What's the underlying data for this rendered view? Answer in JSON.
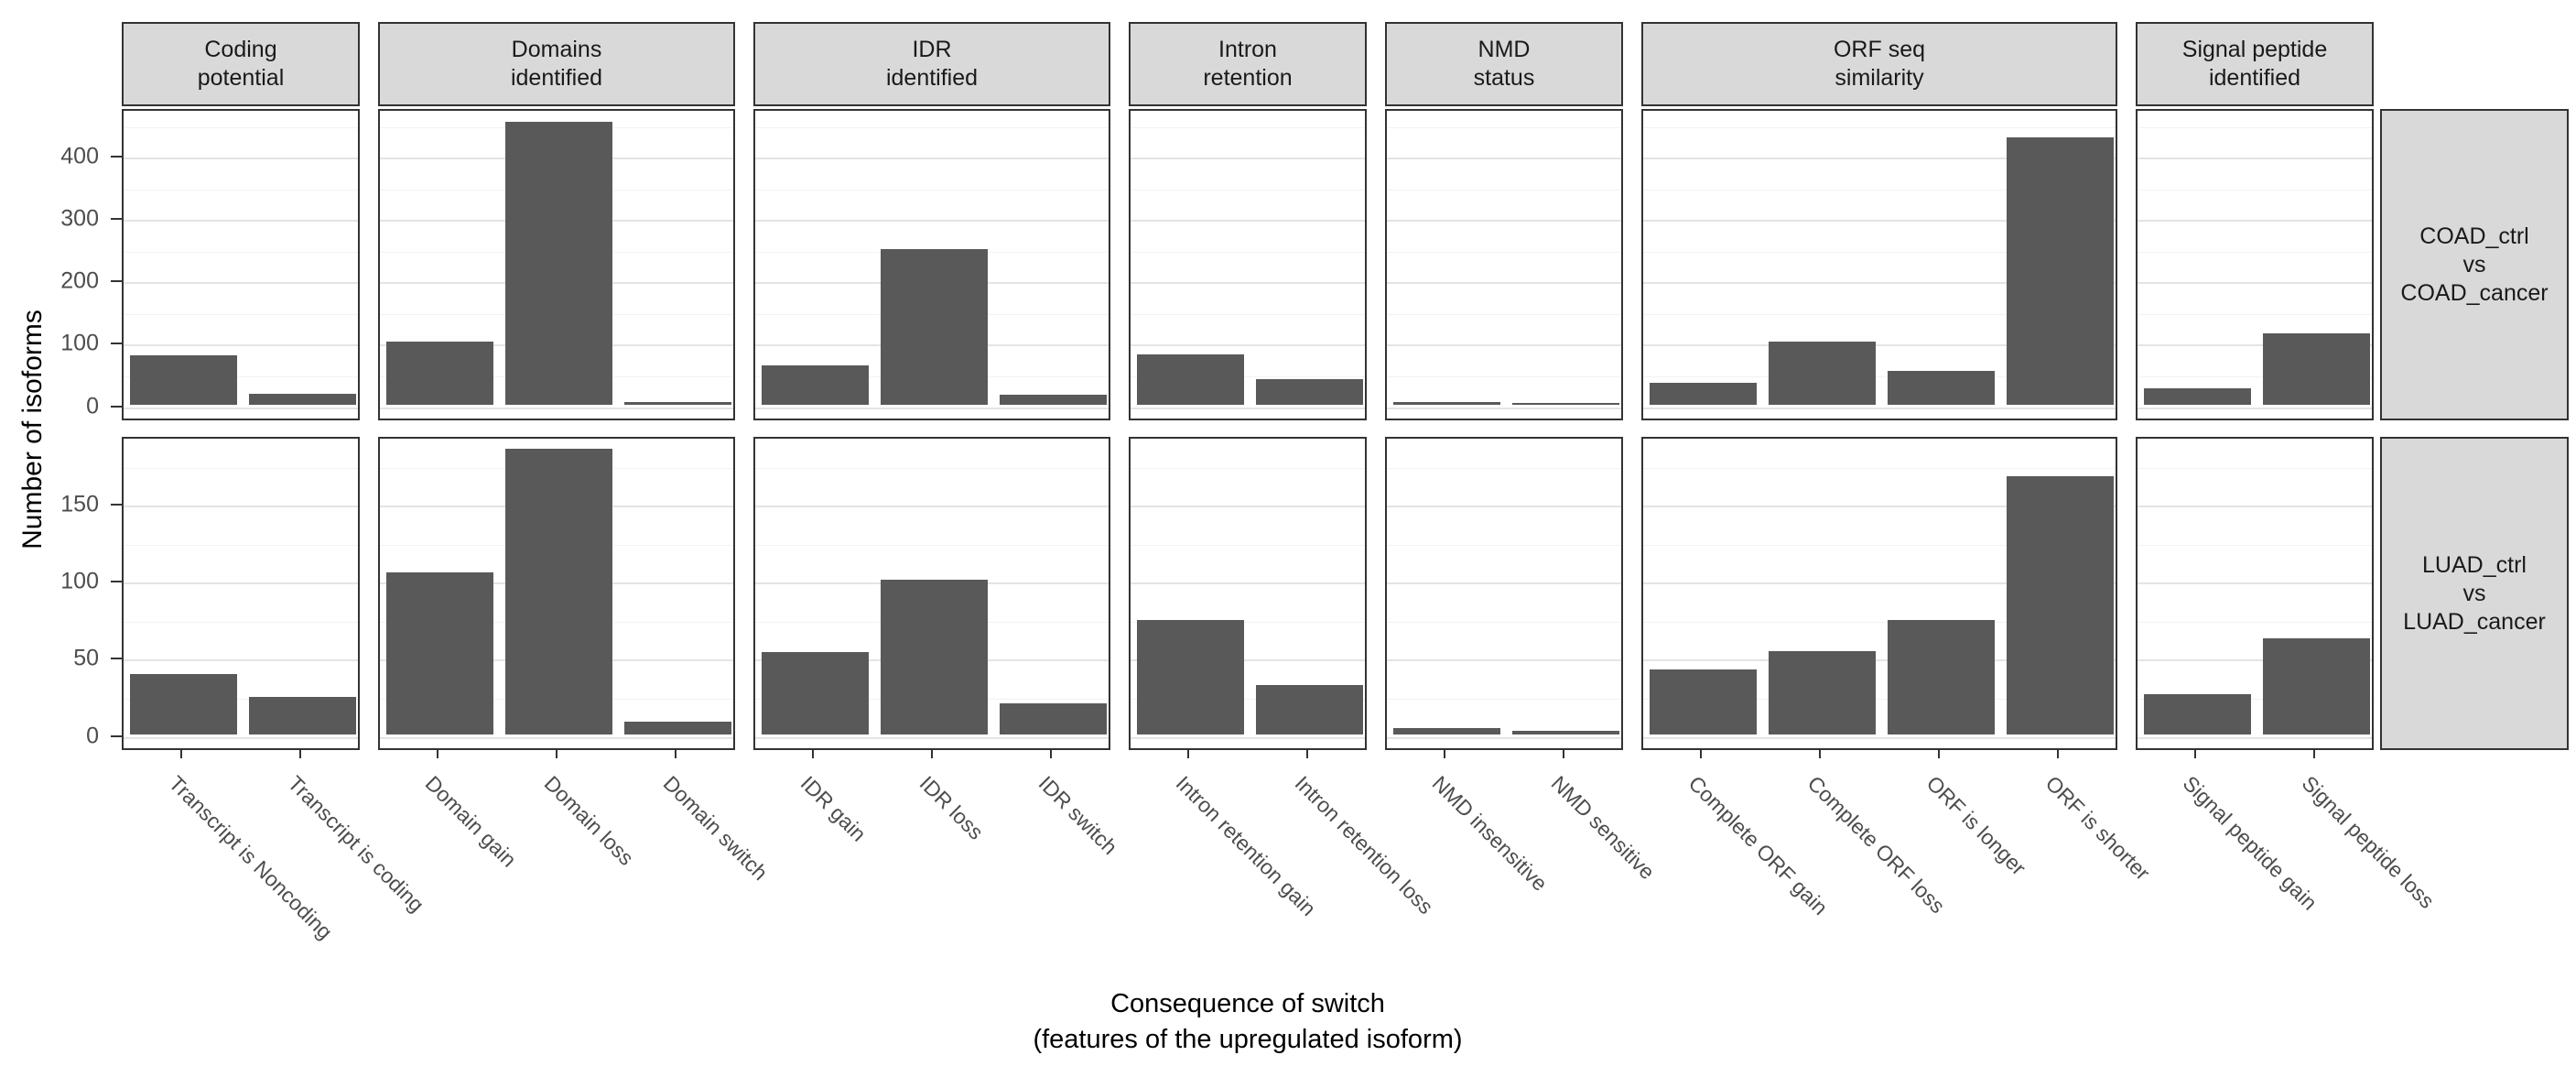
{
  "figure": {
    "y_axis_title": "Number of isoforms",
    "x_axis_title_lines": [
      "Consequence of switch",
      "(features of the upregulated isoform)"
    ]
  },
  "colors": {
    "bar_fill": "#595959",
    "strip_background": "#D9D9D9",
    "panel_border": "#333333",
    "gridline_major": "#E4E4E4",
    "gridline_minor": "#F2F2F2",
    "axis_text": "#4D4D4D",
    "title_text": "#000000"
  },
  "chart_data": {
    "type": "bar",
    "title": "",
    "ylabel": "Number of isoforms",
    "xlabel": "Consequence of switch (features of the upregulated isoform)",
    "legend": "none",
    "grid": true,
    "facet_columns": [
      {
        "label": "Coding potential",
        "label_lines": [
          "Coding",
          "potential"
        ],
        "categories": [
          "Transcript is Noncoding",
          "Transcript is coding"
        ]
      },
      {
        "label": "Domains identified",
        "label_lines": [
          "Domains",
          "identified"
        ],
        "categories": [
          "Domain gain",
          "Domain loss",
          "Domain switch"
        ]
      },
      {
        "label": "IDR identified",
        "label_lines": [
          "IDR",
          "identified"
        ],
        "categories": [
          "IDR gain",
          "IDR loss",
          "IDR switch"
        ]
      },
      {
        "label": "Intron retention",
        "label_lines": [
          "Intron",
          "retention"
        ],
        "categories": [
          "Intron retention gain",
          "Intron retention loss"
        ]
      },
      {
        "label": "NMD status",
        "label_lines": [
          "NMD",
          "status"
        ],
        "categories": [
          "NMD insensitive",
          "NMD sensitive"
        ]
      },
      {
        "label": "ORF seq similarity",
        "label_lines": [
          "ORF seq",
          "similarity"
        ],
        "categories": [
          "Complete ORF gain",
          "Complete ORF loss",
          "ORF is longer",
          "ORF is shorter"
        ]
      },
      {
        "label": "Signal peptide identified",
        "label_lines": [
          "Signal peptide",
          "identified"
        ],
        "categories": [
          "Signal peptide gain",
          "Signal peptide loss"
        ]
      }
    ],
    "facet_rows": [
      {
        "label": "COAD_ctrl vs COAD_cancer",
        "label_lines": [
          "COAD_ctrl",
          "vs",
          "COAD_cancer"
        ],
        "y_ticks": [
          0,
          100,
          200,
          300,
          400
        ],
        "ylim": [
          0,
          477
        ],
        "values": [
          [
            78,
            17
          ],
          [
            101,
            454,
            3
          ],
          [
            62,
            249,
            16
          ],
          [
            80,
            41
          ],
          [
            4,
            1
          ],
          [
            35,
            100,
            54,
            429
          ],
          [
            26,
            114
          ]
        ]
      },
      {
        "label": "LUAD_ctrl vs LUAD_cancer",
        "label_lines": [
          "LUAD_ctrl",
          "vs",
          "LUAD_cancer"
        ],
        "y_ticks": [
          0,
          50,
          100,
          150
        ],
        "ylim": [
          0,
          194
        ],
        "values": [
          [
            39,
            24
          ],
          [
            105,
            185,
            8
          ],
          [
            53,
            100,
            20
          ],
          [
            74,
            32
          ],
          [
            4,
            2
          ],
          [
            42,
            54,
            74,
            167
          ],
          [
            26,
            62
          ]
        ]
      }
    ]
  }
}
